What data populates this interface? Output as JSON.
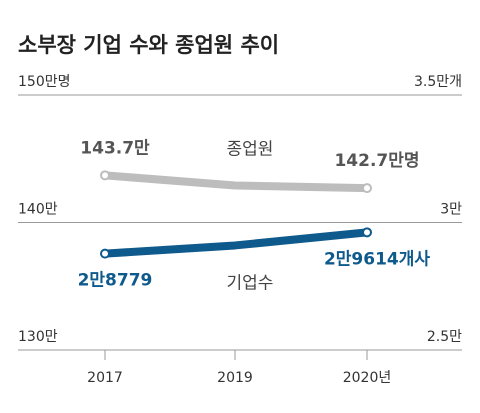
{
  "chart_data": {
    "type": "line",
    "title": "소부장 기업 수와 종업원 추이",
    "categories": [
      "2017",
      "2019",
      "2020년"
    ],
    "series": [
      {
        "name": "종업원",
        "color": "#bdbdbd",
        "values": [
          143.7,
          142.9,
          142.7
        ],
        "value_labels": [
          "143.7만",
          null,
          "142.7만명"
        ]
      },
      {
        "name": "기업수",
        "color": "#0f5a8c",
        "axis": "y2",
        "values": [
          2.8779,
          2.91,
          2.9614
        ],
        "value_labels": [
          "2만8779",
          null,
          "2만9614개사"
        ]
      }
    ],
    "ylim": [
      130,
      150
    ],
    "yticks": [
      {
        "value": 130,
        "label": "130만"
      },
      {
        "value": 140,
        "label": "140만"
      },
      {
        "value": 150,
        "label": "150만명"
      }
    ],
    "y2lim": [
      2.5,
      3.5
    ],
    "y2ticks": [
      {
        "value": 2.5,
        "label": "2.5만"
      },
      {
        "value": 3,
        "label": "3만"
      },
      {
        "value": 3.5,
        "label": "3.5만개"
      }
    ],
    "grid": true
  }
}
